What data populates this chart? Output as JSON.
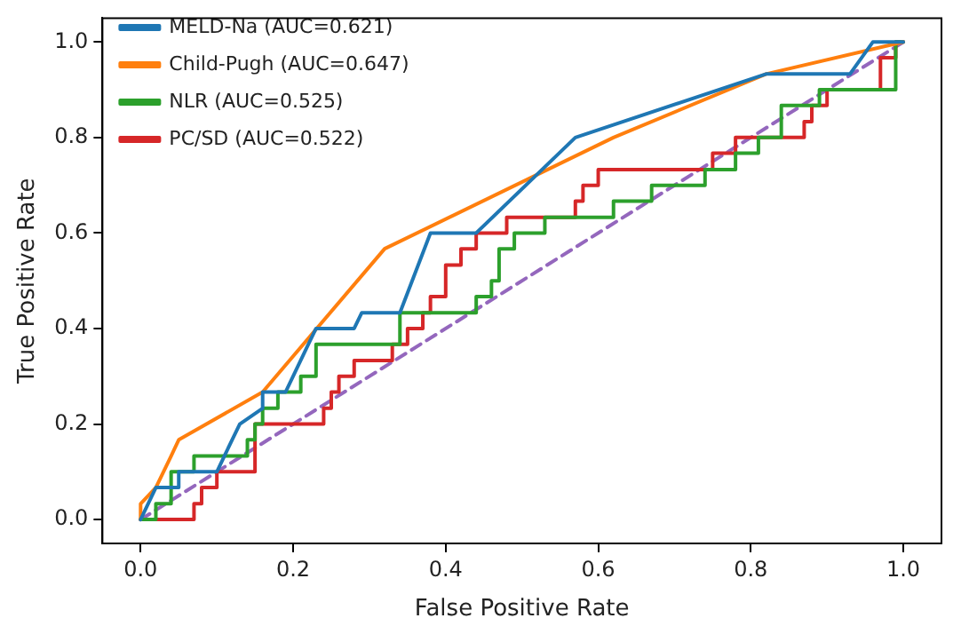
{
  "chart_data": {
    "type": "line",
    "xlabel": "False Positive Rate",
    "ylabel": "True Positive Rate",
    "xlim": [
      -0.05,
      1.05
    ],
    "ylim": [
      -0.05,
      1.05
    ],
    "xticks": [
      {
        "value": 0,
        "label": "0.0"
      },
      {
        "value": 0.2,
        "label": "0.2"
      },
      {
        "value": 0.4,
        "label": "0.4"
      },
      {
        "value": 0.6,
        "label": "0.6"
      },
      {
        "value": 0.8,
        "label": "0.8"
      },
      {
        "value": 1,
        "label": "1.0"
      }
    ],
    "yticks": [
      {
        "value": 0,
        "label": "0.0"
      },
      {
        "value": 0.2,
        "label": "0.2"
      },
      {
        "value": 0.4,
        "label": "0.4"
      },
      {
        "value": 0.6,
        "label": "0.6"
      },
      {
        "value": 0.8,
        "label": "0.8"
      },
      {
        "value": 1,
        "label": "1.0"
      }
    ],
    "grid": false,
    "legend": "top left",
    "marker": "none",
    "series": [
      {
        "name": "MELD-Na (AUC=0.621)",
        "color": "#1f77b4",
        "line_style": "solid",
        "x": [
          0,
          0.02,
          0.05,
          0.05,
          0.1,
          0.12,
          0.13,
          0.16,
          0.16,
          0.19,
          0.22,
          0.23,
          0.28,
          0.29,
          0.34,
          0.38,
          0.44,
          0.57,
          0.82,
          0.93,
          0.96,
          1
        ],
        "values": [
          0,
          0.067,
          0.067,
          0.1,
          0.1,
          0.167,
          0.2,
          0.233,
          0.267,
          0.267,
          0.367,
          0.4,
          0.4,
          0.433,
          0.433,
          0.6,
          0.6,
          0.8,
          0.933,
          0.933,
          1,
          1
        ]
      },
      {
        "name": "Child-Pugh (AUC=0.647)",
        "color": "#ff7f0e",
        "line_style": "solid",
        "x": [
          0,
          0,
          0.02,
          0.04,
          0.05,
          0.16,
          0.32,
          0.62,
          0.82,
          1
        ],
        "values": [
          0,
          0.033,
          0.067,
          0.133,
          0.167,
          0.267,
          0.567,
          0.8,
          0.933,
          1
        ]
      },
      {
        "name": "NLR (AUC=0.525)",
        "color": "#2ca02c",
        "line_style": "solid",
        "x": [
          0,
          0.02,
          0.02,
          0.04,
          0.04,
          0.07,
          0.07,
          0.14,
          0.14,
          0.15,
          0.15,
          0.16,
          0.16,
          0.18,
          0.18,
          0.21,
          0.21,
          0.23,
          0.23,
          0.34,
          0.34,
          0.44,
          0.44,
          0.46,
          0.46,
          0.47,
          0.47,
          0.49,
          0.49,
          0.53,
          0.53,
          0.62,
          0.62,
          0.67,
          0.67,
          0.74,
          0.74,
          0.78,
          0.78,
          0.81,
          0.81,
          0.84,
          0.84,
          0.89,
          0.89,
          0.99,
          0.99,
          1
        ],
        "values": [
          0,
          0,
          0.033,
          0.033,
          0.1,
          0.1,
          0.133,
          0.133,
          0.167,
          0.167,
          0.2,
          0.2,
          0.233,
          0.233,
          0.267,
          0.267,
          0.3,
          0.3,
          0.367,
          0.367,
          0.433,
          0.433,
          0.467,
          0.467,
          0.5,
          0.5,
          0.567,
          0.567,
          0.6,
          0.6,
          0.633,
          0.633,
          0.667,
          0.667,
          0.7,
          0.7,
          0.733,
          0.733,
          0.767,
          0.767,
          0.8,
          0.8,
          0.867,
          0.867,
          0.9,
          0.9,
          1,
          1
        ]
      },
      {
        "name": "PC/SD (AUC=0.522)",
        "color": "#d62728",
        "line_style": "solid",
        "x": [
          0,
          0.07,
          0.07,
          0.08,
          0.08,
          0.1,
          0.1,
          0.15,
          0.15,
          0.24,
          0.24,
          0.25,
          0.25,
          0.26,
          0.26,
          0.28,
          0.28,
          0.33,
          0.33,
          0.35,
          0.35,
          0.37,
          0.37,
          0.38,
          0.38,
          0.4,
          0.4,
          0.42,
          0.42,
          0.44,
          0.44,
          0.48,
          0.48,
          0.57,
          0.57,
          0.58,
          0.58,
          0.6,
          0.6,
          0.75,
          0.75,
          0.78,
          0.78,
          0.87,
          0.87,
          0.88,
          0.88,
          0.9,
          0.9,
          0.97,
          0.97,
          0.99,
          0.99,
          1
        ],
        "values": [
          0,
          0,
          0.033,
          0.033,
          0.067,
          0.067,
          0.1,
          0.1,
          0.2,
          0.2,
          0.233,
          0.233,
          0.267,
          0.267,
          0.3,
          0.3,
          0.333,
          0.333,
          0.367,
          0.367,
          0.4,
          0.4,
          0.433,
          0.433,
          0.467,
          0.467,
          0.533,
          0.533,
          0.567,
          0.567,
          0.6,
          0.6,
          0.633,
          0.633,
          0.667,
          0.667,
          0.7,
          0.7,
          0.733,
          0.733,
          0.767,
          0.767,
          0.8,
          0.8,
          0.833,
          0.833,
          0.867,
          0.867,
          0.9,
          0.9,
          0.967,
          0.967,
          1,
          1
        ]
      },
      {
        "color": "#9467bd",
        "line_style": "dashed",
        "x": [
          0,
          1
        ],
        "values": [
          0,
          1
        ]
      }
    ]
  }
}
